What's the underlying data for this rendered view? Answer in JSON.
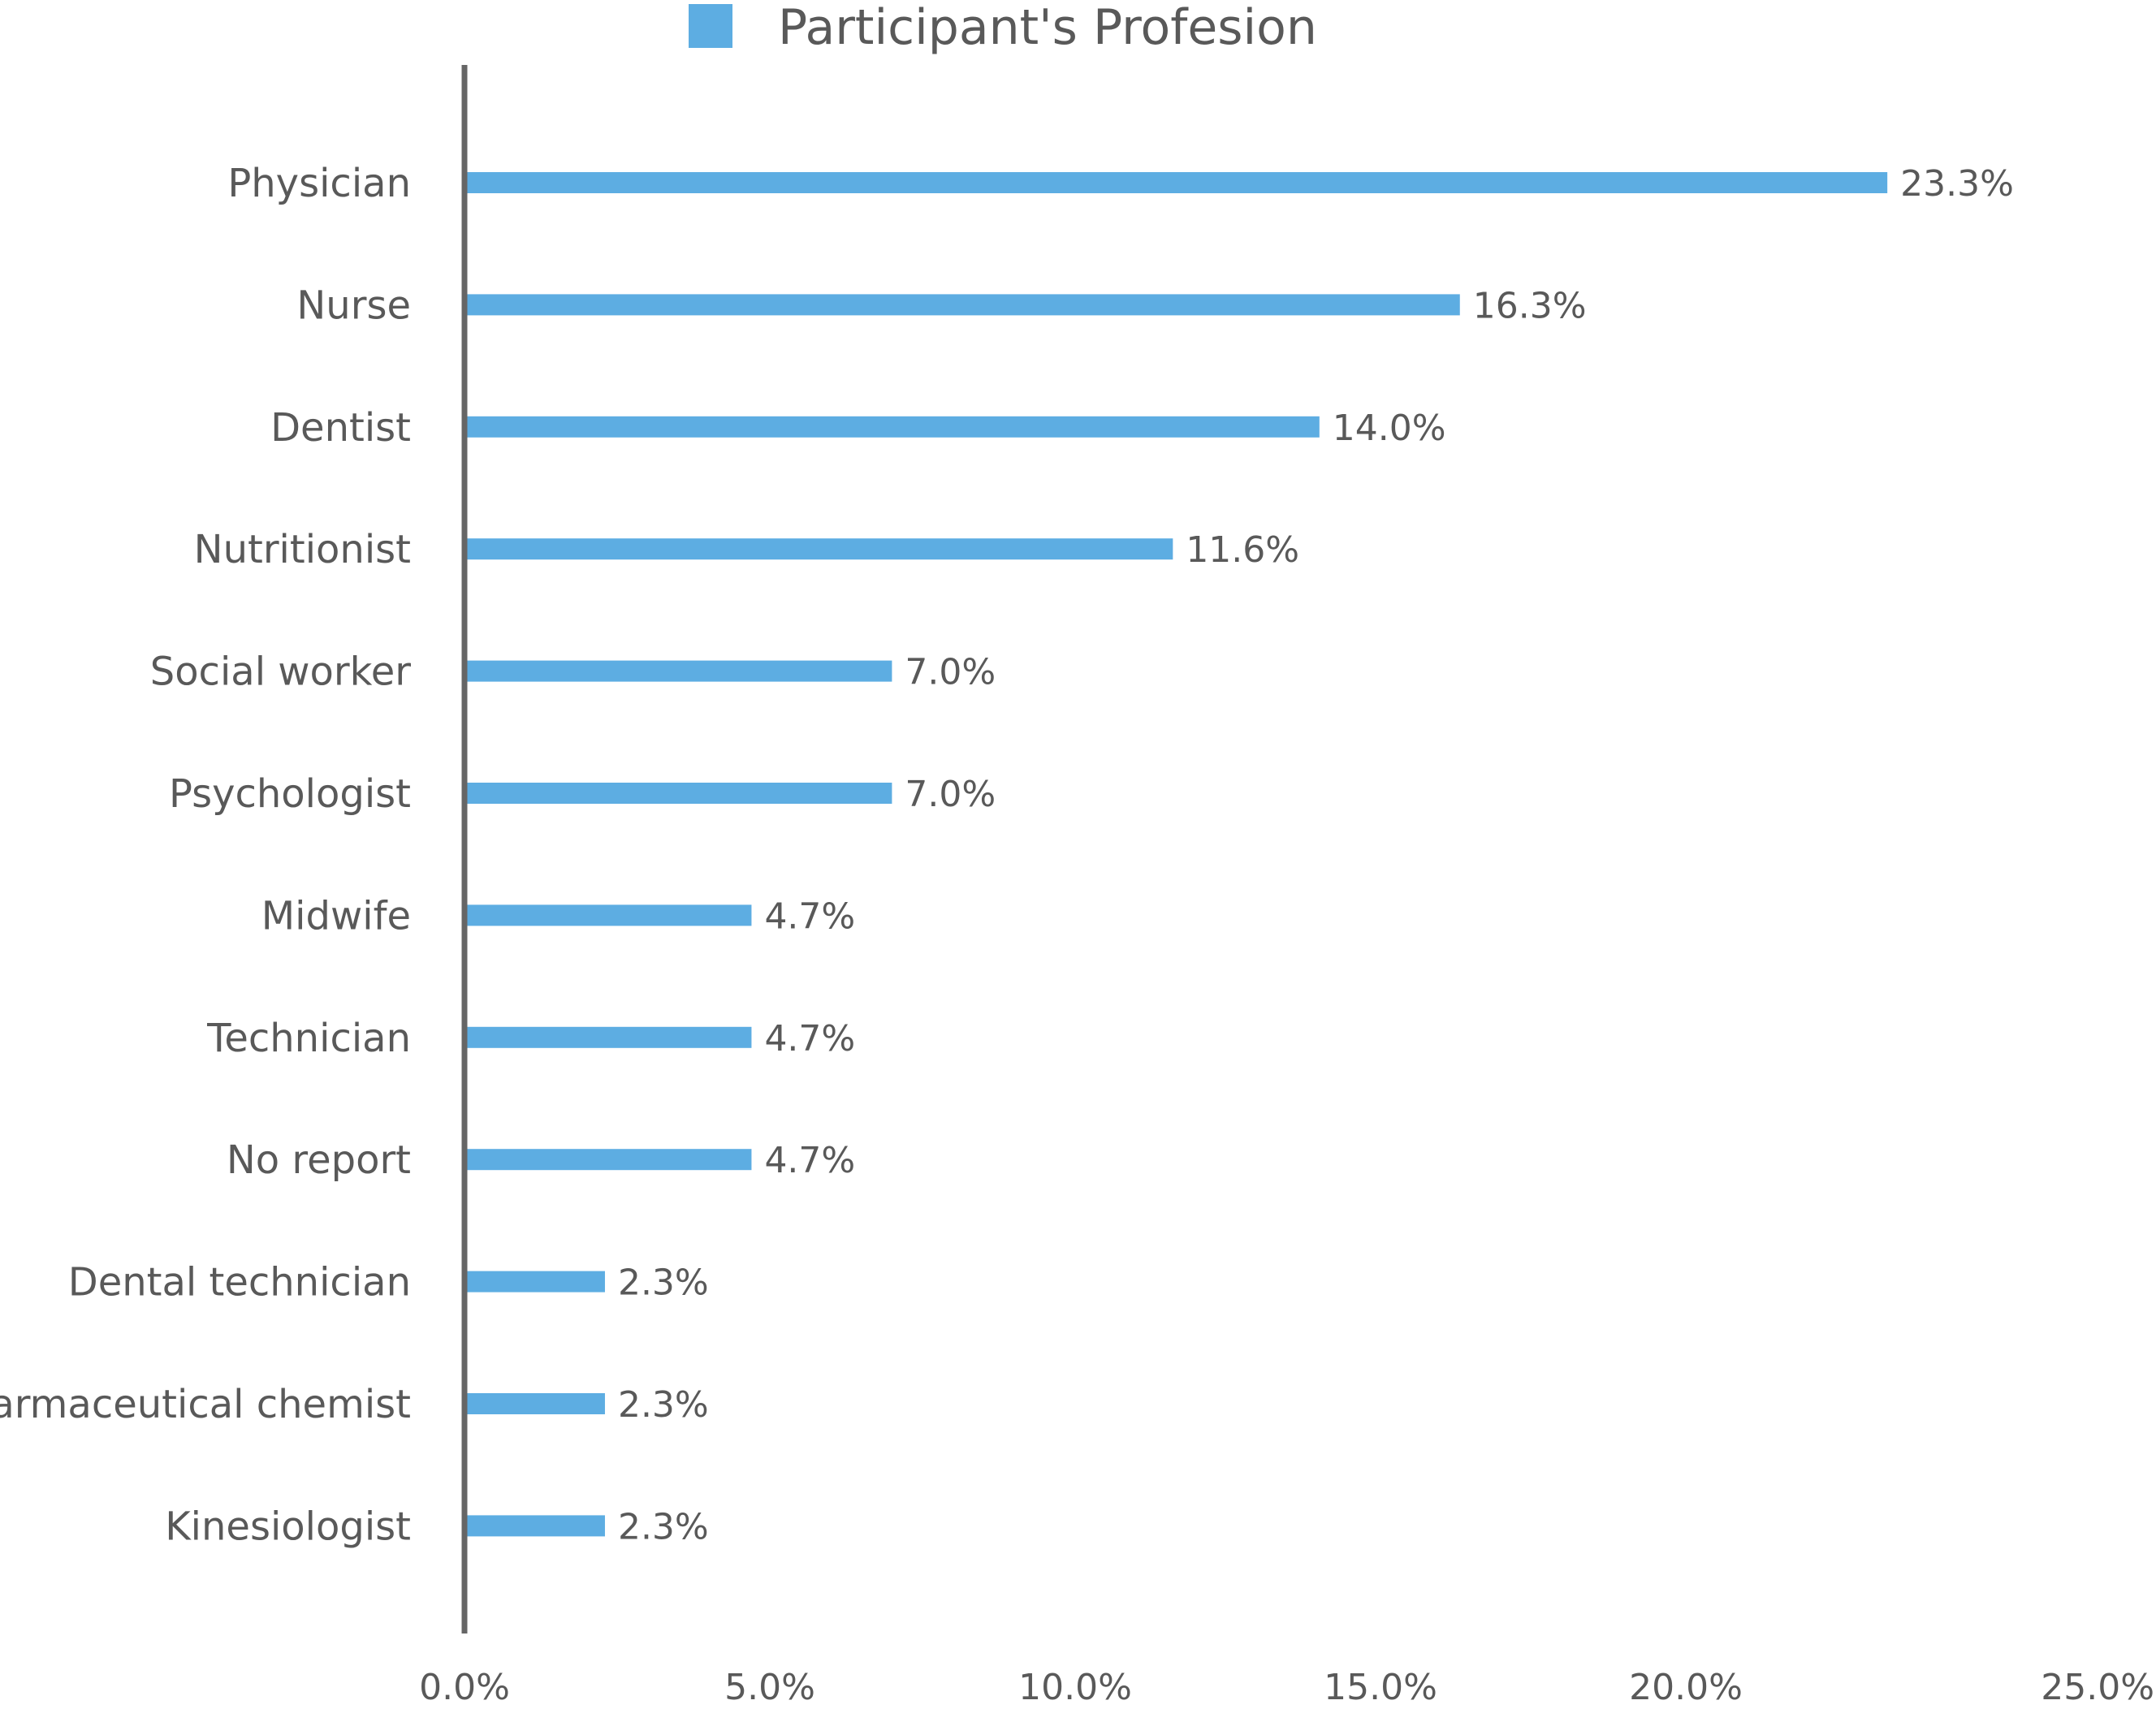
{
  "chart_data": {
    "type": "bar",
    "orientation": "horizontal",
    "title": "",
    "xlabel": "",
    "ylabel": "",
    "legend": {
      "placement": "top",
      "entries": [
        "Participant's Profesion"
      ]
    },
    "categories": [
      "Physician",
      "Nurse",
      "Dentist",
      "Nutritionist",
      "Social worker",
      "Psychologist",
      "Midwife",
      "Technician",
      "No report",
      "Dental technician",
      "Pharmaceutical chemist",
      "Kinesiologist"
    ],
    "series": [
      {
        "name": "Participant's Profesion",
        "values": [
          23.3,
          16.3,
          14.0,
          11.6,
          7.0,
          7.0,
          4.7,
          4.7,
          4.7,
          2.3,
          2.3,
          2.3
        ],
        "labels": [
          "23.3%",
          "16.3%",
          "14.0%",
          "11.6%",
          "7.0%",
          "7.0%",
          "4.7%",
          "4.7%",
          "4.7%",
          "2.3%",
          "2.3%",
          "2.3%"
        ]
      }
    ],
    "xlim": [
      0,
      25
    ],
    "x_ticks": [
      0,
      5,
      10,
      15,
      20,
      25
    ],
    "x_tick_labels": [
      "0.0%",
      "5.0%",
      "10.0%",
      "15.0%",
      "20.0%",
      "25.0%"
    ],
    "grid": false,
    "colors": {
      "bar": "#5DADE2",
      "axis": "#666666",
      "text": "#595959"
    }
  }
}
